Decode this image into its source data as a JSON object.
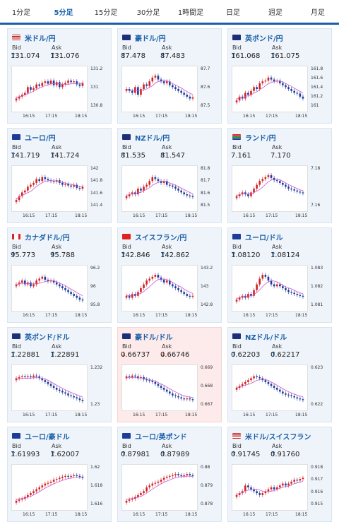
{
  "tabs": [
    {
      "label": "1分足"
    },
    {
      "label": "5分足",
      "active": true
    },
    {
      "label": "15分足"
    },
    {
      "label": "30分足"
    },
    {
      "label": "1時間足"
    },
    {
      "label": "日足"
    },
    {
      "label": "週足"
    },
    {
      "label": "月足"
    }
  ],
  "labels": {
    "bid": "Bid",
    "ask": "Ask"
  },
  "xticks": [
    "16:15",
    "17:15",
    "18:15"
  ],
  "colors": {
    "up": "#d42020",
    "down": "#1e3c9a",
    "ma": "#cc55cc",
    "link": "#1a5fa8",
    "ask_up": "#1a5fa8",
    "ask_down": "#d24a43"
  },
  "cards": [
    {
      "pair": "米ドル/円",
      "flag": "us",
      "dir": "up",
      "bid": "131.074",
      "ask": "131.076",
      "yticks": [
        "131.2",
        "131",
        "130.8"
      ],
      "series": [
        0.25,
        0.3,
        0.35,
        0.4,
        0.55,
        0.48,
        0.52,
        0.62,
        0.58,
        0.66,
        0.7,
        0.64,
        0.72,
        0.6,
        0.68,
        0.55,
        0.62,
        0.66,
        0.72,
        0.68,
        0.7,
        0.62,
        0.58,
        0.66
      ]
    },
    {
      "pair": "豪ドル/円",
      "flag": "au",
      "dir": "up",
      "bid": "87.478",
      "ask": "87.483",
      "yticks": [
        "87.7",
        "87.6",
        "87.5"
      ],
      "series": [
        0.5,
        0.45,
        0.4,
        0.55,
        0.35,
        0.5,
        0.62,
        0.58,
        0.7,
        0.8,
        0.85,
        0.75,
        0.7,
        0.65,
        0.7,
        0.6,
        0.55,
        0.5,
        0.45,
        0.4,
        0.35,
        0.3,
        0.25,
        0.28
      ]
    },
    {
      "pair": "英ポンド/円",
      "flag": "uk",
      "dir": "up",
      "bid": "161.068",
      "ask": "161.075",
      "yticks": [
        "161.8",
        "161.6",
        "161.4",
        "161.2",
        "161"
      ],
      "series": [
        0.2,
        0.3,
        0.25,
        0.4,
        0.35,
        0.45,
        0.55,
        0.5,
        0.65,
        0.7,
        0.72,
        0.8,
        0.75,
        0.7,
        0.72,
        0.65,
        0.6,
        0.55,
        0.5,
        0.45,
        0.4,
        0.38,
        0.3,
        0.25
      ]
    },
    {
      "pair": "ユーロ/円",
      "flag": "eu",
      "dir": "up",
      "bid": "141.719",
      "ask": "141.724",
      "yticks": [
        "142",
        "141.8",
        "141.6",
        "141.4"
      ],
      "series": [
        0.2,
        0.3,
        0.4,
        0.45,
        0.55,
        0.6,
        0.65,
        0.75,
        0.7,
        0.8,
        0.75,
        0.72,
        0.7,
        0.68,
        0.72,
        0.65,
        0.6,
        0.62,
        0.58,
        0.55,
        0.6,
        0.52,
        0.5,
        0.55
      ]
    },
    {
      "pair": "NZドル/円",
      "flag": "nz",
      "dir": "up",
      "bid": "81.535",
      "ask": "81.547",
      "yticks": [
        "81.8",
        "81.7",
        "81.6",
        "81.5"
      ],
      "series": [
        0.3,
        0.35,
        0.4,
        0.35,
        0.5,
        0.45,
        0.55,
        0.6,
        0.7,
        0.8,
        0.75,
        0.7,
        0.65,
        0.7,
        0.6,
        0.58,
        0.55,
        0.5,
        0.45,
        0.4,
        0.35,
        0.32,
        0.3,
        0.28
      ]
    },
    {
      "pair": "ランド/円",
      "flag": "za",
      "dir": "none",
      "bid": "7.161",
      "ask": "7.170",
      "yticks": [
        "7.18",
        "7.16"
      ],
      "series": [
        0.3,
        0.35,
        0.4,
        0.35,
        0.3,
        0.4,
        0.5,
        0.6,
        0.7,
        0.75,
        0.8,
        0.85,
        0.78,
        0.72,
        0.7,
        0.65,
        0.6,
        0.55,
        0.5,
        0.48,
        0.45,
        0.42,
        0.4,
        0.38
      ]
    },
    {
      "pair": "カナダドル/円",
      "flag": "ca",
      "dir": "up",
      "bid": "95.773",
      "ask": "95.788",
      "yticks": [
        "96.2",
        "96",
        "95.8"
      ],
      "series": [
        0.6,
        0.65,
        0.7,
        0.6,
        0.65,
        0.55,
        0.6,
        0.7,
        0.75,
        0.8,
        0.72,
        0.68,
        0.7,
        0.65,
        0.6,
        0.55,
        0.5,
        0.45,
        0.4,
        0.35,
        0.3,
        0.25,
        0.2,
        0.18
      ]
    },
    {
      "pair": "スイスフラン/円",
      "flag": "ch",
      "dir": "up",
      "bid": "142.846",
      "ask": "142.862",
      "yticks": [
        "143.2",
        "143",
        "142.8"
      ],
      "series": [
        0.3,
        0.25,
        0.35,
        0.3,
        0.4,
        0.5,
        0.6,
        0.7,
        0.75,
        0.8,
        0.85,
        0.78,
        0.72,
        0.65,
        0.7,
        0.6,
        0.55,
        0.5,
        0.45,
        0.4,
        0.35,
        0.3,
        0.28,
        0.3
      ]
    },
    {
      "pair": "ユーロ/ドル",
      "flag": "eu",
      "dir": "up",
      "bid": "1.08120",
      "ask": "1.08124",
      "yticks": [
        "1.083",
        "1.082",
        "1.081"
      ],
      "series": [
        0.2,
        0.25,
        0.3,
        0.25,
        0.35,
        0.3,
        0.45,
        0.6,
        0.75,
        0.85,
        0.8,
        0.7,
        0.6,
        0.55,
        0.6,
        0.55,
        0.5,
        0.45,
        0.4,
        0.38,
        0.35,
        0.32,
        0.3,
        0.28
      ]
    },
    {
      "pair": "英ポンド/ドル",
      "flag": "uk",
      "dir": "up",
      "bid": "1.22881",
      "ask": "1.22891",
      "yticks": [
        "1.232",
        "1.23"
      ],
      "series": [
        0.75,
        0.78,
        0.8,
        0.78,
        0.8,
        0.78,
        0.82,
        0.8,
        0.75,
        0.7,
        0.65,
        0.6,
        0.55,
        0.5,
        0.45,
        0.42,
        0.38,
        0.35,
        0.3,
        0.28,
        0.25,
        0.22,
        0.18,
        0.15
      ]
    },
    {
      "pair": "豪ドル/ドル",
      "flag": "au",
      "dir": "down",
      "bid": "0.66737",
      "ask": "0.66746",
      "yticks": [
        "0.669",
        "0.668",
        "0.667"
      ],
      "series": [
        0.8,
        0.78,
        0.82,
        0.8,
        0.75,
        0.78,
        0.72,
        0.7,
        0.68,
        0.65,
        0.6,
        0.55,
        0.5,
        0.45,
        0.4,
        0.35,
        0.3,
        0.28,
        0.25,
        0.22,
        0.2,
        0.22,
        0.2,
        0.18
      ]
    },
    {
      "pair": "NZドル/ドル",
      "flag": "nz",
      "dir": "up",
      "bid": "0.62203",
      "ask": "0.62217",
      "yticks": [
        "0.623",
        "0.622"
      ],
      "series": [
        0.5,
        0.55,
        0.6,
        0.65,
        0.7,
        0.75,
        0.8,
        0.78,
        0.75,
        0.7,
        0.65,
        0.6,
        0.55,
        0.5,
        0.45,
        0.4,
        0.35,
        0.32,
        0.3,
        0.28,
        0.25,
        0.22,
        0.2,
        0.18
      ]
    },
    {
      "pair": "ユーロ/豪ドル",
      "flag": "eu",
      "dir": "up",
      "bid": "1.61993",
      "ask": "1.62007",
      "yticks": [
        "1.62",
        "1.618",
        "1.616"
      ],
      "series": [
        0.15,
        0.18,
        0.2,
        0.25,
        0.3,
        0.35,
        0.4,
        0.45,
        0.5,
        0.55,
        0.6,
        0.62,
        0.65,
        0.7,
        0.72,
        0.75,
        0.78,
        0.8,
        0.78,
        0.8,
        0.82,
        0.8,
        0.78,
        0.75
      ]
    },
    {
      "pair": "ユーロ/英ポンド",
      "flag": "eu",
      "dir": "up",
      "bid": "0.87981",
      "ask": "0.87989",
      "yticks": [
        "0.88",
        "0.879",
        "0.878"
      ],
      "series": [
        0.15,
        0.18,
        0.2,
        0.25,
        0.3,
        0.35,
        0.4,
        0.5,
        0.55,
        0.6,
        0.62,
        0.65,
        0.7,
        0.75,
        0.78,
        0.8,
        0.82,
        0.85,
        0.82,
        0.8,
        0.82,
        0.85,
        0.82,
        0.8
      ]
    },
    {
      "pair": "米ドル/スイスフラン",
      "flag": "us",
      "dir": "up",
      "bid": "0.91745",
      "ask": "0.91760",
      "yticks": [
        "0.918",
        "0.917",
        "0.916",
        "0.915"
      ],
      "series": [
        0.3,
        0.35,
        0.4,
        0.55,
        0.5,
        0.45,
        0.4,
        0.35,
        0.3,
        0.35,
        0.4,
        0.45,
        0.5,
        0.45,
        0.5,
        0.55,
        0.6,
        0.55,
        0.6,
        0.65,
        0.7,
        0.68,
        0.72,
        0.75
      ]
    }
  ]
}
